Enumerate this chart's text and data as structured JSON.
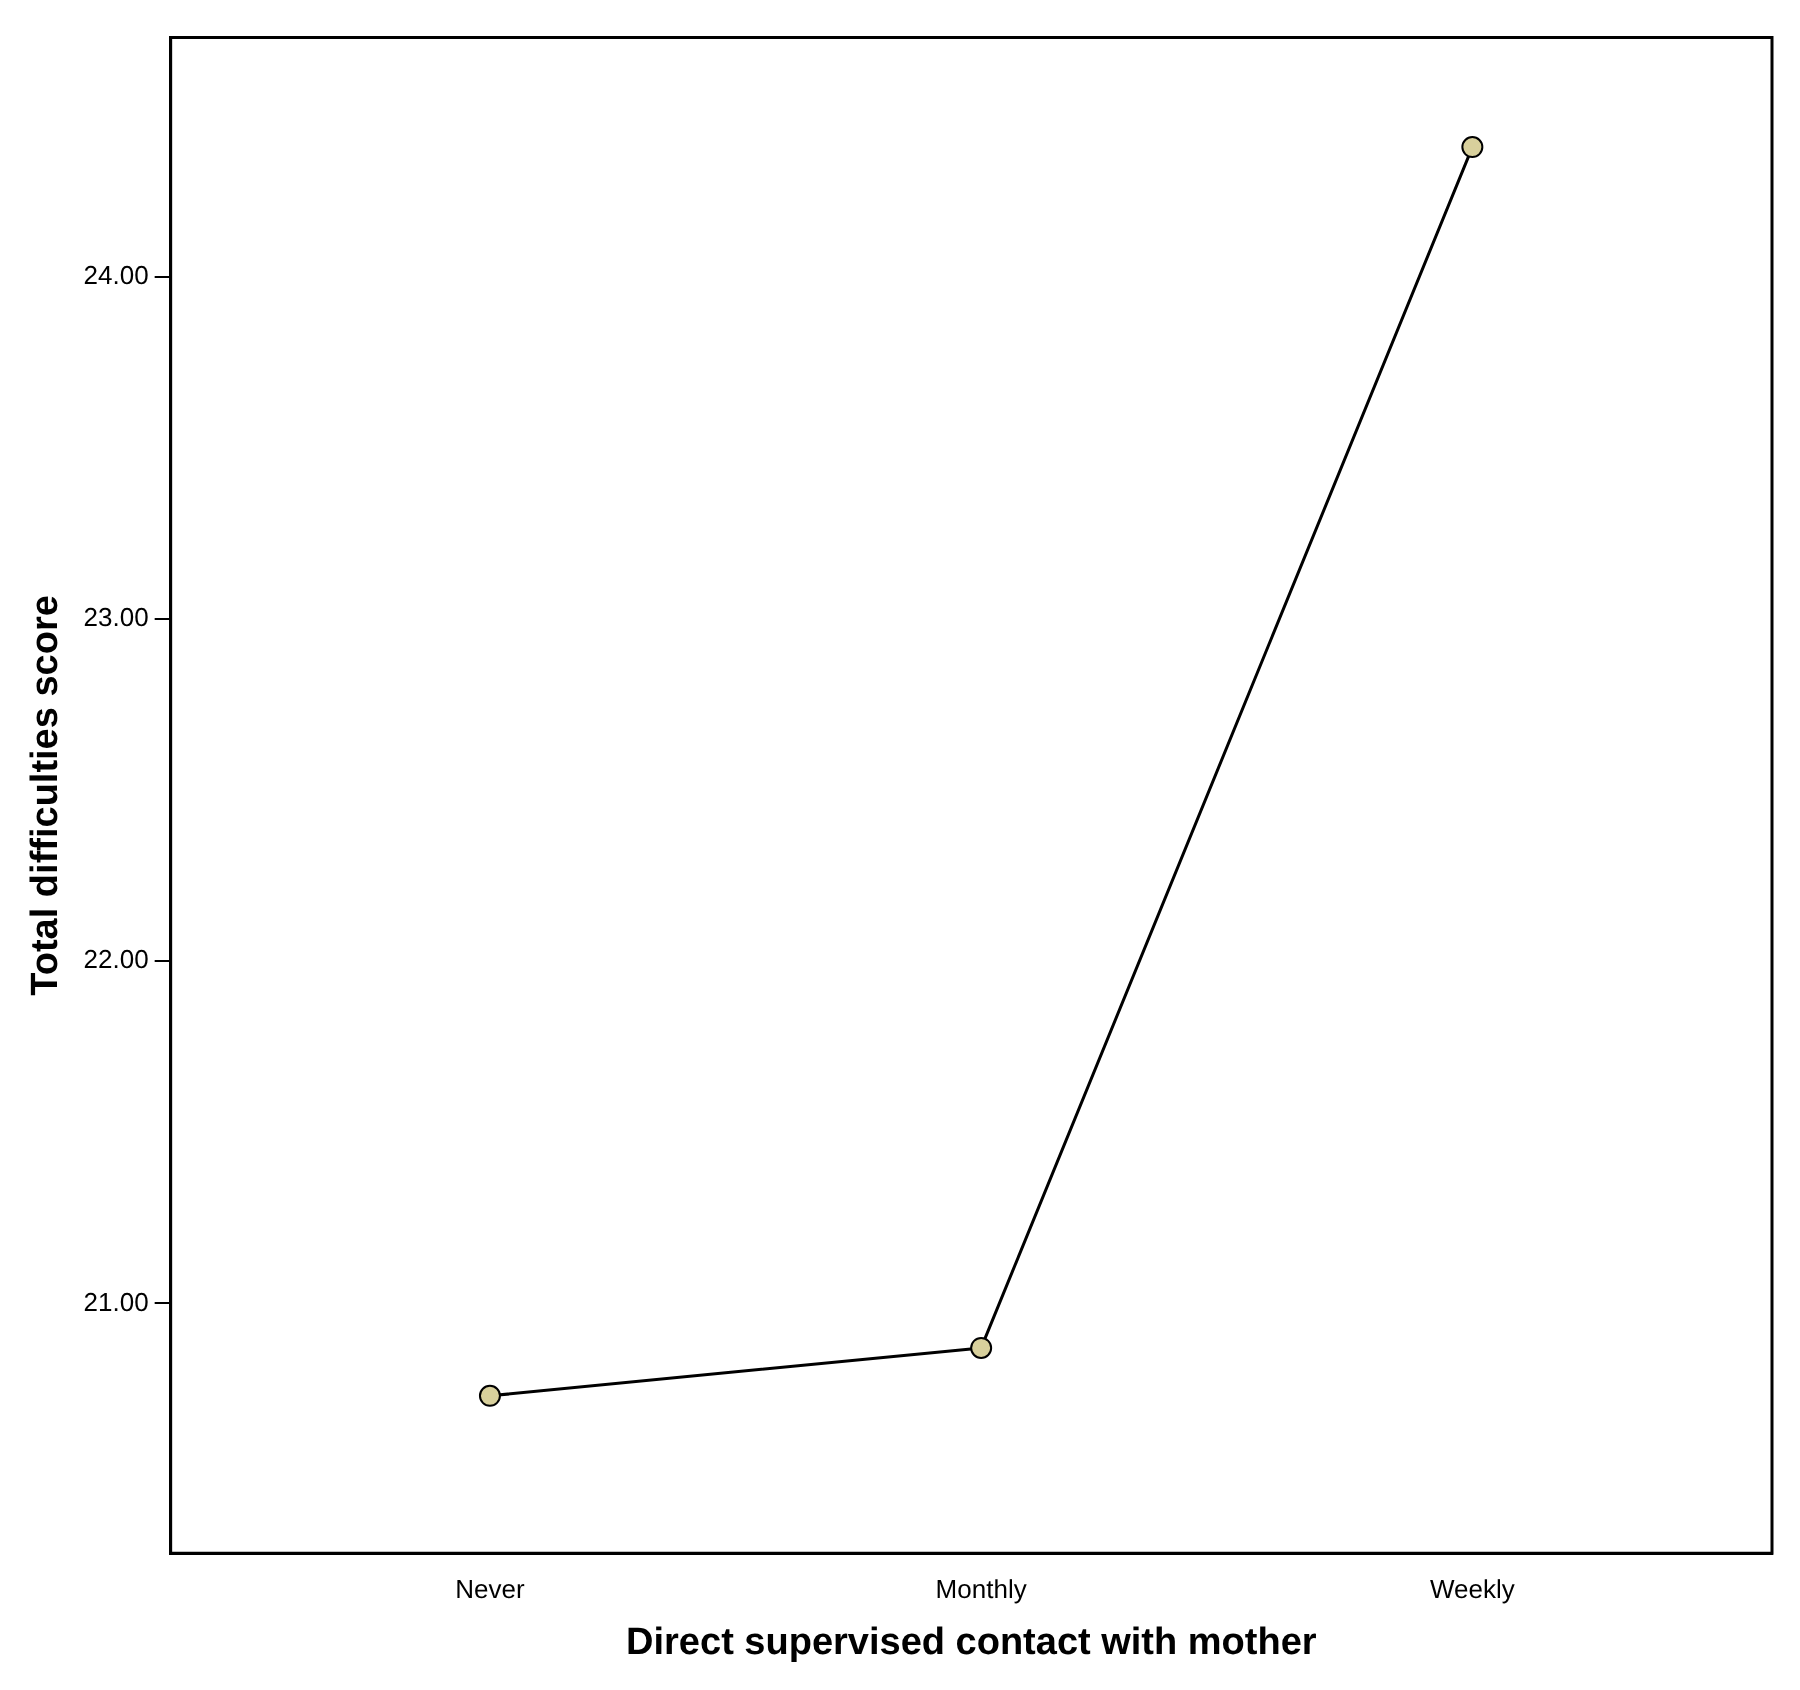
{
  "chart_data": {
    "type": "line",
    "xlabel": "Direct supervised contact with mother",
    "ylabel": "Total difficulties score",
    "categories": [
      "Never",
      "Monthly",
      "Weekly"
    ],
    "series": [
      {
        "color": "#000000",
        "values": [
          20.73,
          20.87,
          24.38
        ]
      }
    ],
    "marker": "circle",
    "line_style": "solid",
    "ylim": [
      20.27,
      24.7
    ],
    "yticks": [
      {
        "value": 21,
        "label": "21.00"
      },
      {
        "value": 22,
        "label": "22.00"
      },
      {
        "value": 23,
        "label": "23.00"
      },
      {
        "value": 24,
        "label": "24.00"
      }
    ],
    "grid": false,
    "legend": false
  }
}
